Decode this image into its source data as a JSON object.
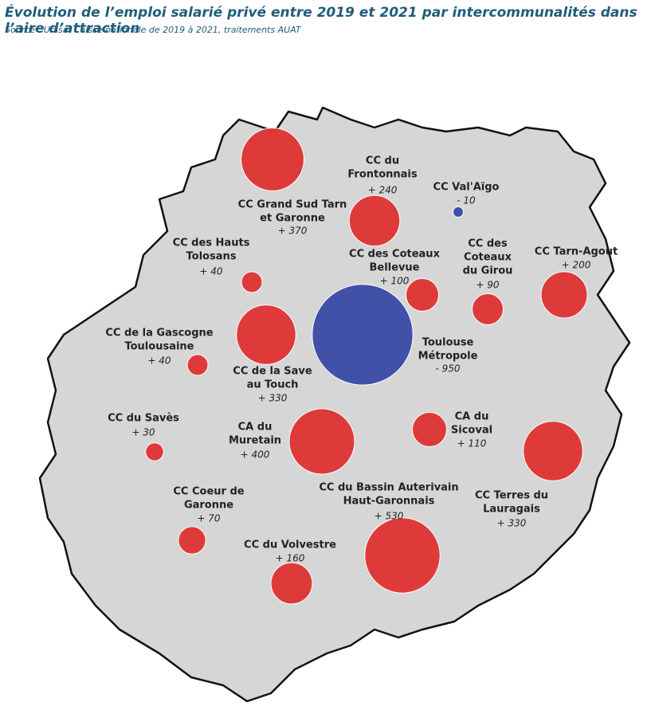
{
  "header": {
    "title": "Évolution de l’emploi salarié privé entre 2019 et 2021 par intercommunalités dans l’aire d’attraction",
    "source": "Source : Urssaf Caisse nationale de 2019 à 2021, traitements AUAT"
  },
  "map": {
    "positive_color": "#e03232",
    "negative_color": "#3a4aa6",
    "areas": [
      {
        "name": [
          "CC Grand Sud Tarn",
          "et Garonne"
        ],
        "value": 370,
        "value_label": "+ 370"
      },
      {
        "name": [
          "CC du",
          "Frontonnais"
        ],
        "value": 240,
        "value_label": "+ 240"
      },
      {
        "name": [
          "CC Val'Aïgo"
        ],
        "value": -10,
        "value_label": "- 10"
      },
      {
        "name": [
          "CC des Hauts",
          "Tolosans"
        ],
        "value": 40,
        "value_label": "+ 40"
      },
      {
        "name": [
          "CC des Coteaux",
          "Bellevue"
        ],
        "value": 100,
        "value_label": "+ 100"
      },
      {
        "name": [
          "CC des",
          "Coteaux",
          "du Girou"
        ],
        "value": 90,
        "value_label": "+ 90"
      },
      {
        "name": [
          "CC Tarn-Agout"
        ],
        "value": 200,
        "value_label": "+ 200"
      },
      {
        "name": [
          "Toulouse",
          "Métropole"
        ],
        "value": -950,
        "value_label": "- 950"
      },
      {
        "name": [
          "CC de la Gascogne",
          "Toulousaine"
        ],
        "value": 40,
        "value_label": "+ 40"
      },
      {
        "name": [
          "CC de la Save",
          "au Touch"
        ],
        "value": 330,
        "value_label": "+ 330"
      },
      {
        "name": [
          "CC du Savès"
        ],
        "value": 30,
        "value_label": "+ 30"
      },
      {
        "name": [
          "CA du",
          "Muretain"
        ],
        "value": 400,
        "value_label": "+ 400"
      },
      {
        "name": [
          "CA du",
          "Sicoval"
        ],
        "value": 110,
        "value_label": "+ 110"
      },
      {
        "name": [
          "CC Terres du",
          "Lauragais"
        ],
        "value": 330,
        "value_label": "+ 330"
      },
      {
        "name": [
          "CC du Bassin Auterivain",
          "Haut-Garonnais"
        ],
        "value": 530,
        "value_label": "+ 530"
      },
      {
        "name": [
          "CC Coeur de",
          "Garonne"
        ],
        "value": 70,
        "value_label": "+ 70"
      },
      {
        "name": [
          "CC du Volvestre"
        ],
        "value": 160,
        "value_label": "+ 160"
      }
    ]
  }
}
